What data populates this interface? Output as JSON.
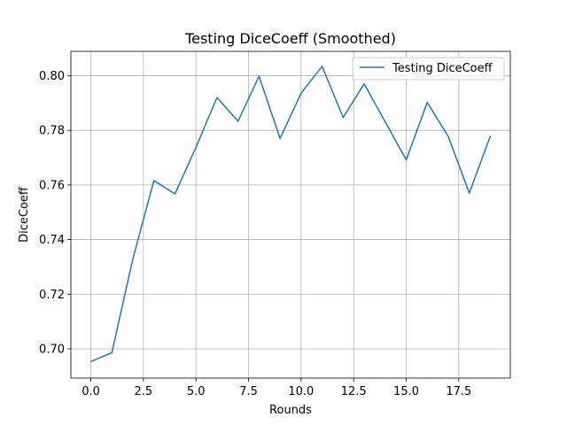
{
  "chart_data": {
    "type": "line",
    "title": "Testing DiceCoeff (Smoothed)",
    "xlabel": "Rounds",
    "ylabel": "DiceCoeff",
    "xlim": [
      -0.95,
      19.95
    ],
    "ylim": [
      0.6893,
      0.8089
    ],
    "xticks": [
      0.0,
      2.5,
      5.0,
      7.5,
      10.0,
      12.5,
      15.0,
      17.5
    ],
    "xtick_labels": [
      "0.0",
      "2.5",
      "5.0",
      "7.5",
      "10.0",
      "12.5",
      "15.0",
      "17.5"
    ],
    "yticks": [
      0.7,
      0.72,
      0.74,
      0.76,
      0.78,
      0.8
    ],
    "ytick_labels": [
      "0.70",
      "0.72",
      "0.74",
      "0.76",
      "0.78",
      "0.80"
    ],
    "grid": true,
    "legend_position": "upper right",
    "series": [
      {
        "name": "Testing DiceCoeff",
        "color": "#1f77b4",
        "x": [
          0,
          1,
          2,
          3,
          4,
          5,
          6,
          7,
          8,
          9,
          10,
          11,
          12,
          13,
          14,
          15,
          16,
          17,
          18,
          19
        ],
        "y": [
          0.6953,
          0.6986,
          0.733,
          0.7616,
          0.7567,
          0.7738,
          0.792,
          0.7833,
          0.7998,
          0.777,
          0.7936,
          0.8034,
          0.7847,
          0.797,
          0.7831,
          0.7692,
          0.7902,
          0.7777,
          0.757,
          0.7779
        ]
      }
    ]
  }
}
